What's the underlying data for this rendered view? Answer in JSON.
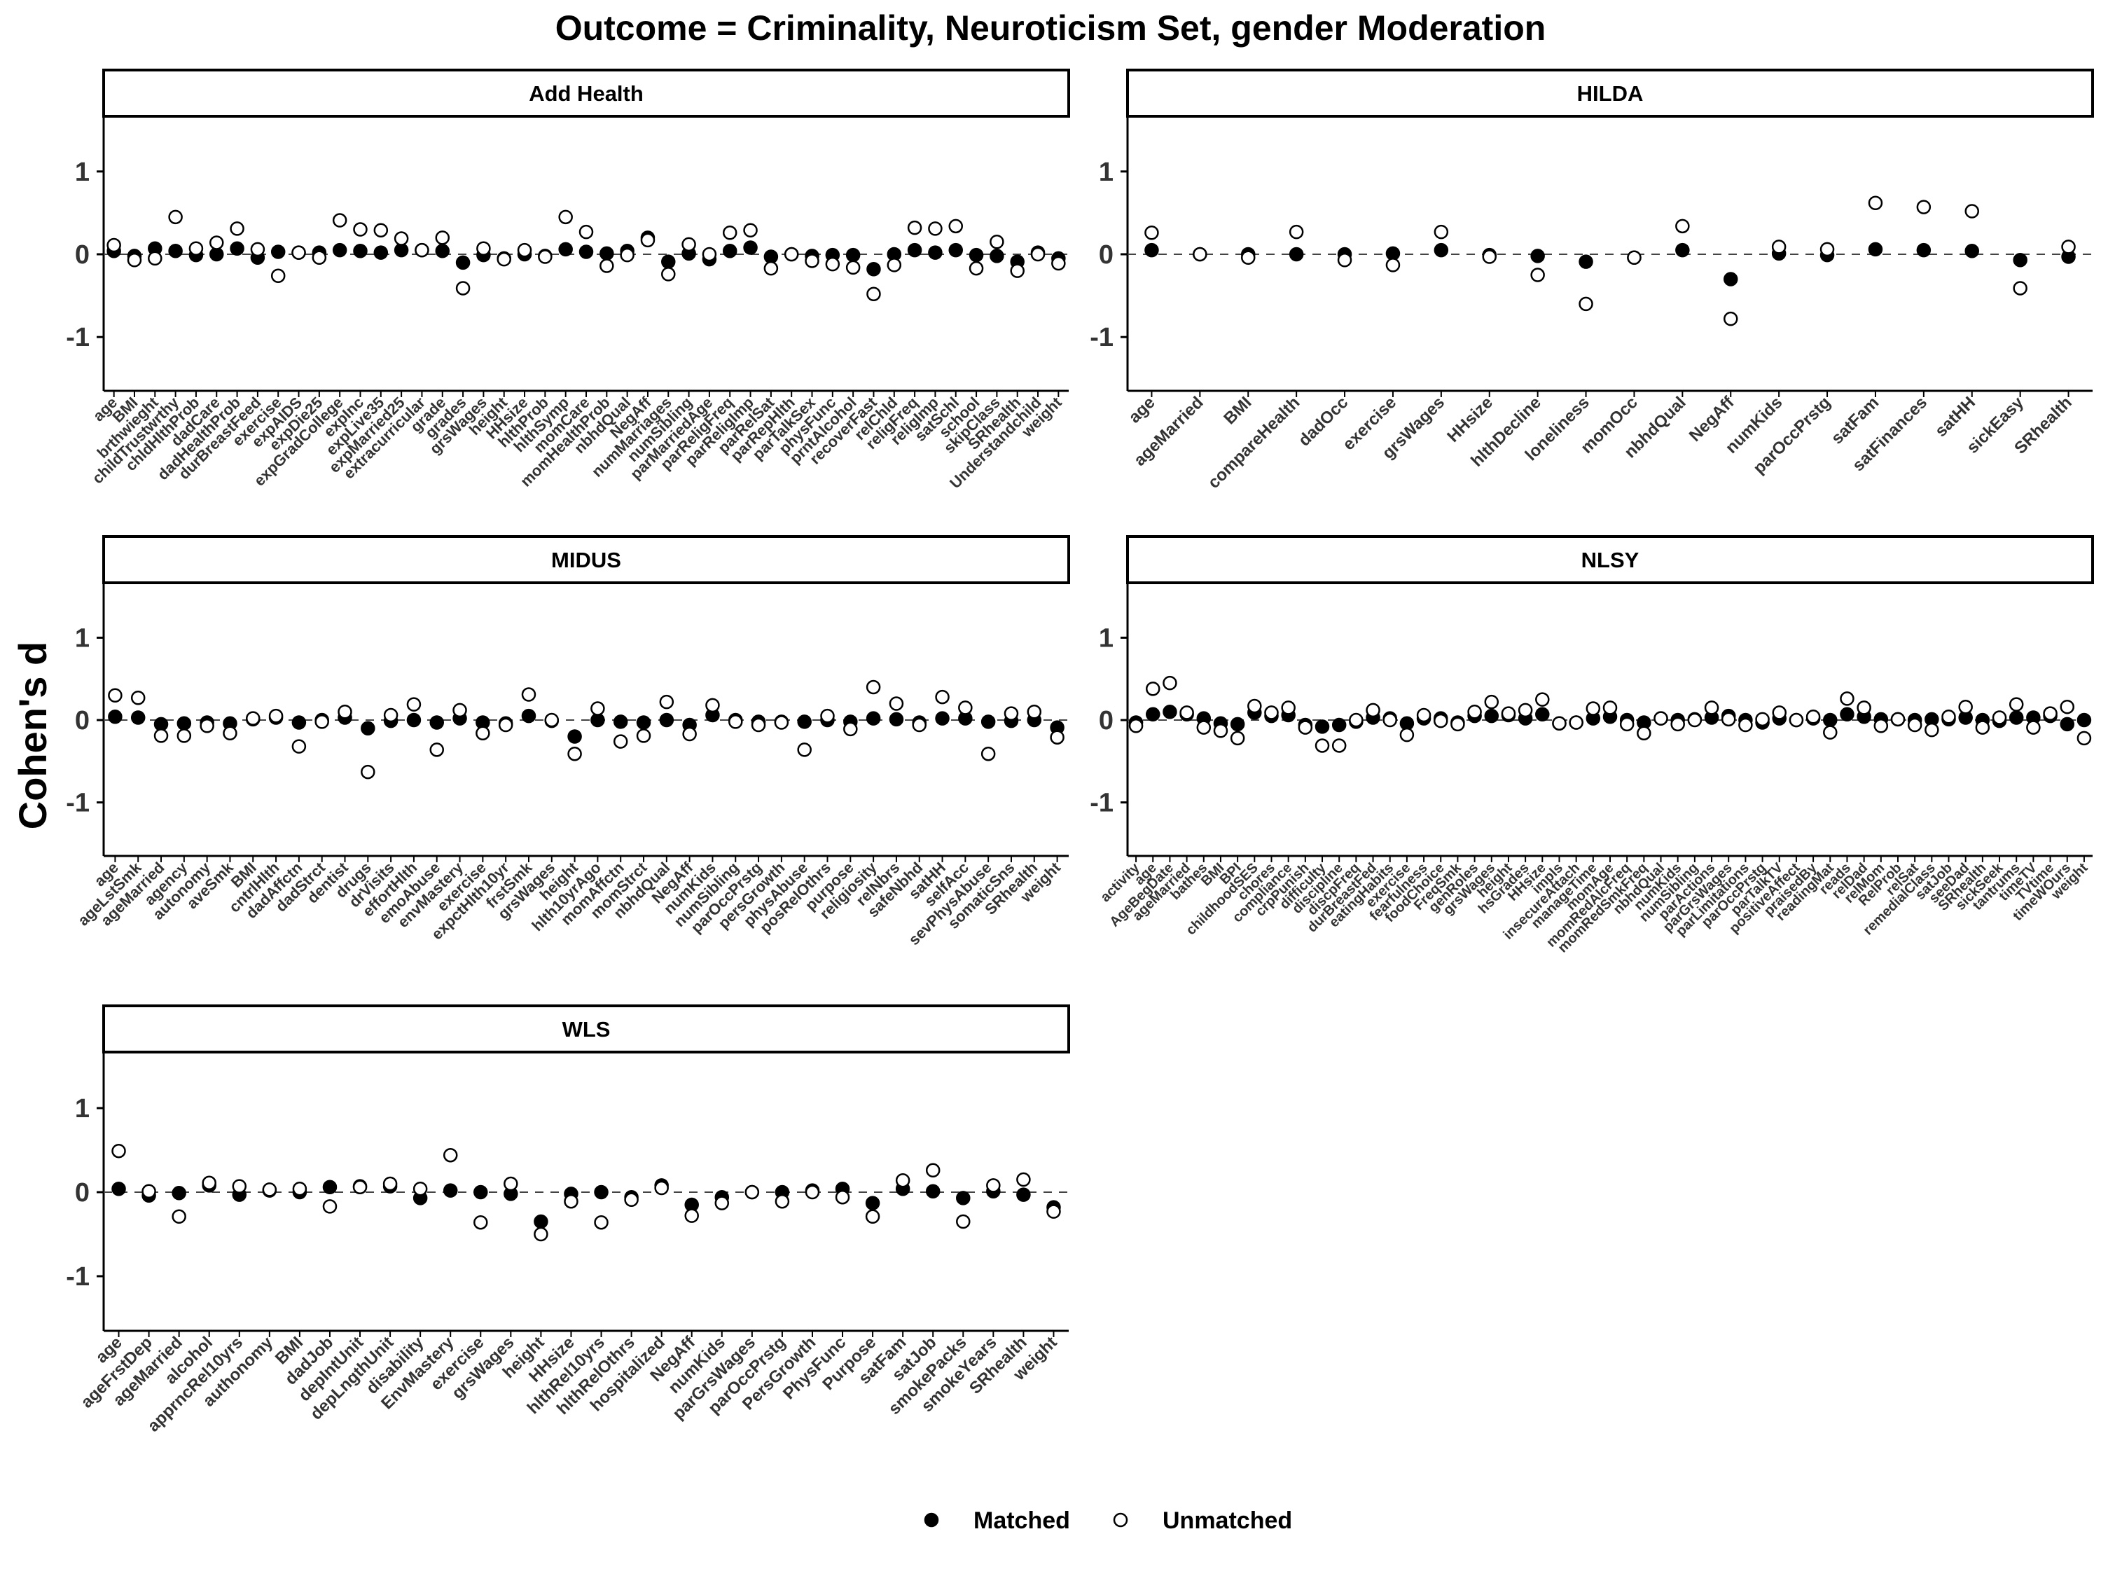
{
  "chart_data": {
    "type": "scatter",
    "title": "Outcome = Criminality, Neuroticism Set, gender Moderation",
    "ylabel": "Cohen's d",
    "xlabel": "",
    "ylim": [
      -1.65,
      1.65
    ],
    "yticks": [
      -1,
      0,
      1
    ],
    "ytick_labels": [
      "-1",
      "0",
      "1"
    ],
    "reference_line": 0,
    "grid": false,
    "legend": {
      "placement": "bottom",
      "entries": [
        {
          "label": "Matched",
          "marker": "filled-circle"
        },
        {
          "label": "Unmatched",
          "marker": "open-circle"
        }
      ]
    },
    "colors": {
      "matched_fill": "#000000",
      "unmatched_fill": "#ffffff",
      "stroke": "#000000",
      "reference_line": "#444444"
    },
    "panels": [
      {
        "name": "Add Health",
        "categories": [
          "age",
          "BMI",
          "brthwieght",
          "childTrustwrthy",
          "chldHlthProb",
          "dadCare",
          "dadHealthProb",
          "durBreastFeed",
          "exercise",
          "expAIDS",
          "expDie25",
          "expGradCollege",
          "expInc",
          "expLive35",
          "expMarried25",
          "extracurricular",
          "grade",
          "grades",
          "grsWages",
          "height",
          "HHsize",
          "hlthProb",
          "hlthSymp",
          "momCare",
          "momHealthProb",
          "nbhdQual",
          "NegAff",
          "numMarriages",
          "numSibling",
          "parMarriedAge",
          "parReligFreq",
          "parReligImp",
          "parRelSat",
          "parRepHlth",
          "parTalkSex",
          "physFunc",
          "prntAlcohol",
          "recoverFast",
          "relChld",
          "religFreq",
          "religImp",
          "satSchl",
          "school",
          "skipClass",
          "SRhealth",
          "Understandchild",
          "weight"
        ],
        "series": [
          {
            "name": "Matched",
            "values": [
              0.04,
              -0.02,
              0.07,
              0.04,
              -0.01,
              0.0,
              0.07,
              -0.04,
              0.03,
              0.02,
              0.02,
              0.05,
              0.04,
              0.02,
              0.05,
              0.05,
              0.04,
              -0.1,
              -0.01,
              -0.05,
              0.0,
              -0.02,
              0.06,
              0.03,
              0.01,
              0.04,
              0.2,
              -0.09,
              0.01,
              -0.06,
              0.04,
              0.08,
              -0.03,
              0.0,
              -0.02,
              -0.01,
              -0.01,
              -0.18,
              0.0,
              0.05,
              0.02,
              0.05,
              -0.01,
              -0.02,
              -0.09,
              0.02,
              -0.05
            ]
          },
          {
            "name": "Unmatched",
            "values": [
              0.11,
              -0.07,
              -0.05,
              0.45,
              0.07,
              0.14,
              0.31,
              0.06,
              -0.26,
              0.02,
              -0.04,
              0.41,
              0.3,
              0.29,
              0.19,
              0.05,
              0.2,
              -0.41,
              0.07,
              -0.06,
              0.05,
              -0.03,
              0.45,
              0.27,
              -0.14,
              -0.01,
              0.17,
              -0.24,
              0.12,
              0.0,
              0.26,
              0.29,
              -0.17,
              0.0,
              -0.08,
              -0.12,
              -0.16,
              -0.48,
              -0.13,
              0.32,
              0.31,
              0.34,
              -0.17,
              0.15,
              -0.2,
              0.0,
              -0.11
            ]
          }
        ]
      },
      {
        "name": "HILDA",
        "categories": [
          "age",
          "ageMarried",
          "BMI",
          "compareHealth",
          "dadOcc",
          "exercise",
          "grsWages",
          "HHsize",
          "hlthDecline",
          "loneliness",
          "momOcc",
          "nbhdQual",
          "NegAff",
          "numKids",
          "parOccPrstg",
          "satFam",
          "satFinances",
          "satHH",
          "sickEasy",
          "SRhealth"
        ],
        "series": [
          {
            "name": "Matched",
            "values": [
              0.05,
              0.0,
              0.0,
              0.0,
              0.0,
              0.01,
              0.05,
              -0.01,
              -0.02,
              -0.09,
              -0.04,
              0.05,
              -0.3,
              0.01,
              -0.01,
              0.06,
              0.05,
              0.04,
              -0.07,
              -0.03
            ]
          },
          {
            "name": "Unmatched",
            "values": [
              0.26,
              0.0,
              -0.04,
              0.27,
              -0.07,
              -0.13,
              0.27,
              -0.03,
              -0.25,
              -0.6,
              -0.04,
              0.34,
              -0.78,
              0.09,
              0.06,
              0.62,
              0.57,
              0.52,
              -0.41,
              0.09
            ]
          }
        ]
      },
      {
        "name": "MIDUS",
        "categories": [
          "age",
          "ageLstSmk",
          "ageMarried",
          "agency",
          "autonomy",
          "aveSmk",
          "BMI",
          "cntrlHlth",
          "dadAffctn",
          "dadStrct",
          "dentist",
          "drugs",
          "drVisits",
          "effortHlth",
          "emoAbuse",
          "envMastery",
          "exercise",
          "expctHlth10yr",
          "frstSmk",
          "grsWages",
          "height",
          "hlth10yrAgo",
          "momAffctn",
          "momStrct",
          "nbhdQual",
          "NegAff",
          "numKids",
          "numSibling",
          "parOccPrstg",
          "persGrowth",
          "physAbuse",
          "posRelOthrs",
          "purpose",
          "religiosity",
          "relNbrs",
          "safeNbhd",
          "satHH",
          "selfAcc",
          "sevPhysAbuse",
          "somaticSns",
          "SRhealth",
          "weight"
        ],
        "series": [
          {
            "name": "Matched",
            "values": [
              0.04,
              0.03,
              -0.05,
              -0.04,
              -0.03,
              -0.04,
              0.01,
              0.03,
              -0.03,
              0.0,
              0.03,
              -0.1,
              -0.01,
              0.0,
              -0.03,
              0.02,
              -0.03,
              -0.04,
              0.05,
              -0.01,
              -0.2,
              0.0,
              -0.02,
              -0.03,
              0.0,
              -0.06,
              0.06,
              0.0,
              -0.02,
              -0.02,
              -0.02,
              0.0,
              -0.02,
              0.02,
              0.01,
              -0.03,
              0.02,
              0.02,
              -0.02,
              -0.01,
              0.0,
              -0.09
            ]
          },
          {
            "name": "Unmatched",
            "values": [
              0.3,
              0.27,
              -0.19,
              -0.19,
              -0.07,
              -0.16,
              0.02,
              0.05,
              -0.32,
              -0.02,
              0.1,
              -0.63,
              0.06,
              0.19,
              -0.36,
              0.12,
              -0.16,
              -0.06,
              0.31,
              0.0,
              -0.41,
              0.14,
              -0.26,
              -0.19,
              0.22,
              -0.17,
              0.18,
              -0.02,
              -0.06,
              -0.03,
              -0.36,
              0.05,
              -0.11,
              0.4,
              0.2,
              -0.06,
              0.28,
              0.15,
              -0.41,
              0.08,
              0.1,
              -0.21
            ]
          }
        ]
      },
      {
        "name": "NLSY",
        "categories": [
          "activity",
          "age",
          "AgeBegDate",
          "ageMarried",
          "bathes",
          "BMI",
          "BPI",
          "childhoodSES",
          "chores",
          "compliance",
          "crpPunish",
          "difficulty",
          "discipline",
          "discpFreq",
          "durBreastFed",
          "eatingHabits",
          "exercise",
          "fearfulness",
          "foodChoice",
          "FreqSmk",
          "genRoles",
          "grsWages",
          "height",
          "hsGrades",
          "HHsize",
          "impls",
          "insecureAttach",
          "manageTime",
          "momAge",
          "momRedAlcFreq",
          "momRedSmkFreq",
          "nbhdQual",
          "numKids",
          "numSibling",
          "parActions",
          "parGrsWages",
          "parLimitations",
          "parOccPrstg",
          "parTalkTV",
          "positiveAffect",
          "praisedBy",
          "readingMat",
          "reads",
          "relDad",
          "relMom",
          "RelProb",
          "relSat",
          "remedialClass",
          "satJob",
          "seeDad",
          "SRhealth",
          "sickSeek",
          "tantrums",
          "timeTV",
          "TVtime",
          "timeWOurs",
          "weight"
        ],
        "series": [
          {
            "name": "Matched",
            "values": [
              -0.03,
              0.07,
              0.1,
              0.07,
              0.02,
              -0.04,
              -0.05,
              0.09,
              0.05,
              0.06,
              -0.06,
              -0.08,
              -0.06,
              -0.02,
              0.03,
              0.02,
              -0.04,
              0.02,
              0.02,
              -0.03,
              0.05,
              0.05,
              0.06,
              0.02,
              0.07,
              -0.04,
              -0.03,
              0.02,
              0.04,
              0.0,
              -0.03,
              0.02,
              0.0,
              0.01,
              0.03,
              0.05,
              0.0,
              -0.03,
              0.02,
              0.0,
              0.02,
              0.0,
              0.07,
              0.04,
              0.01,
              0.01,
              0.0,
              0.01,
              0.01,
              0.03,
              0.0,
              -0.01,
              0.03,
              0.03,
              0.05,
              -0.05,
              0.0
            ]
          },
          {
            "name": "Unmatched",
            "values": [
              -0.07,
              0.38,
              0.45,
              0.09,
              -0.09,
              -0.13,
              -0.22,
              0.17,
              0.09,
              0.15,
              -0.09,
              -0.31,
              -0.31,
              0.0,
              0.12,
              0.0,
              -0.18,
              0.06,
              -0.01,
              -0.05,
              0.1,
              0.22,
              0.08,
              0.12,
              0.25,
              -0.04,
              -0.03,
              0.14,
              0.15,
              -0.05,
              -0.16,
              0.02,
              -0.05,
              0.0,
              0.15,
              0.01,
              -0.06,
              0.01,
              0.09,
              0.0,
              0.04,
              -0.15,
              0.26,
              0.15,
              -0.07,
              0.01,
              -0.06,
              -0.12,
              0.04,
              0.16,
              -0.09,
              0.03,
              0.19,
              -0.09,
              0.08,
              0.16,
              -0.22
            ]
          }
        ]
      },
      {
        "name": "WLS",
        "categories": [
          "age",
          "ageFrstDep",
          "ageMarried",
          "alcohol",
          "apprncRel10yrs",
          "authonomy",
          "BMI",
          "dadJob",
          "depIntUnit",
          "depLngthUnit",
          "disability",
          "EnvMastery",
          "exercise",
          "grsWages",
          "height",
          "HHsize",
          "hlthRel10yrs",
          "hlthRelOthrs",
          "hospitalized",
          "NegAff",
          "numKids",
          "parGrsWages",
          "parOccPrstg",
          "PersGrowth",
          "PhysFunc",
          "Purpose",
          "satFam",
          "satJob",
          "smokePacks",
          "smokeYears",
          "SRhealth",
          "weight"
        ],
        "series": [
          {
            "name": "Matched",
            "values": [
              0.04,
              -0.04,
              -0.01,
              0.08,
              -0.03,
              0.02,
              0.0,
              0.06,
              0.07,
              0.07,
              -0.07,
              0.02,
              0.0,
              -0.02,
              -0.35,
              -0.02,
              0.0,
              -0.06,
              0.08,
              -0.15,
              -0.06,
              0.0,
              0.0,
              0.02,
              0.04,
              -0.13,
              0.04,
              0.01,
              -0.07,
              0.01,
              -0.03,
              -0.18
            ]
          },
          {
            "name": "Unmatched",
            "values": [
              0.49,
              0.01,
              -0.29,
              0.11,
              0.07,
              0.03,
              0.04,
              -0.17,
              0.06,
              0.1,
              0.04,
              0.44,
              -0.36,
              0.1,
              -0.5,
              -0.11,
              -0.36,
              -0.09,
              0.05,
              -0.28,
              -0.13,
              0.0,
              -0.11,
              0.0,
              -0.06,
              -0.29,
              0.14,
              0.26,
              -0.35,
              0.08,
              0.15,
              -0.23
            ]
          }
        ]
      }
    ]
  }
}
